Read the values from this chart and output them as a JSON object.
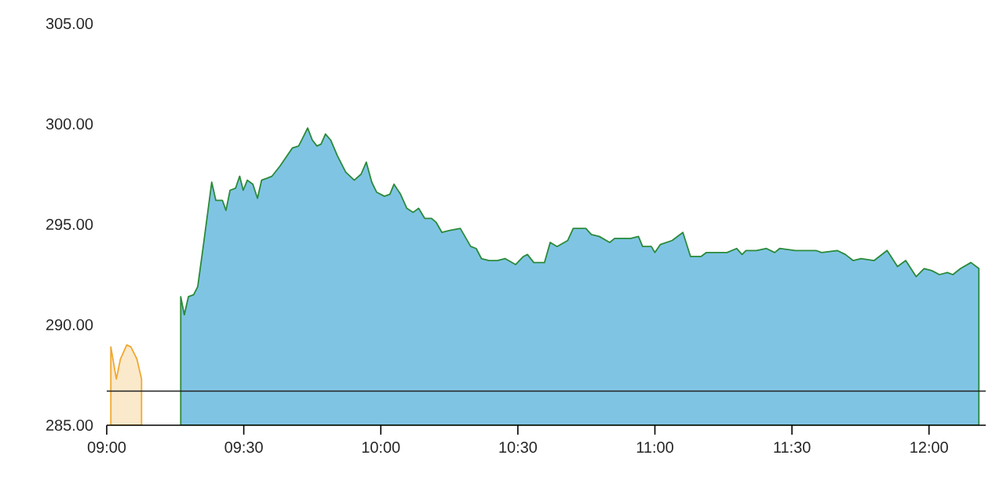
{
  "chart_data": {
    "type": "area",
    "xlim": [
      9,
      12.207
    ],
    "ylim": [
      285,
      305
    ],
    "xticks": [
      {
        "value": 9,
        "label": "09:00"
      },
      {
        "value": 9.5,
        "label": "09:30"
      },
      {
        "value": 10,
        "label": "10:00"
      },
      {
        "value": 10.5,
        "label": "10:30"
      },
      {
        "value": 11,
        "label": "11:00"
      },
      {
        "value": 11.5,
        "label": "11:30"
      },
      {
        "value": 12,
        "label": "12:00"
      }
    ],
    "yticks": [
      {
        "value": 285,
        "label": "285.00"
      },
      {
        "value": 290,
        "label": "290.00"
      },
      {
        "value": 295,
        "label": "295.00"
      },
      {
        "value": 300,
        "label": "300.00"
      },
      {
        "value": 305,
        "label": "305.00"
      }
    ],
    "grid": false,
    "ref_lines": [
      {
        "axis": "y",
        "value": 286.7,
        "color": "#222222"
      }
    ],
    "series": [
      {
        "color": "#fbe9cb",
        "x": [
          9.015,
          9.035,
          9.05,
          9.073,
          9.088,
          9.11,
          9.127
        ],
        "values": [
          288.9,
          287.3,
          288.3,
          289.0,
          288.9,
          288.3,
          287.3
        ]
      },
      {
        "color": "#80c4e4",
        "x": [
          9.27,
          9.283,
          9.298,
          9.317,
          9.332,
          9.355,
          9.383,
          9.398,
          9.422,
          9.435,
          9.45,
          9.47,
          9.485,
          9.498,
          9.513,
          9.533,
          9.55,
          9.565,
          9.585,
          9.603,
          9.632,
          9.652,
          9.677,
          9.7,
          9.715,
          9.733,
          9.75,
          9.767,
          9.782,
          9.798,
          9.817,
          9.842,
          9.872,
          9.903,
          9.928,
          9.947,
          9.967,
          9.985,
          10.013,
          10.033,
          10.048,
          10.072,
          10.095,
          10.118,
          10.138,
          10.16,
          10.185,
          10.202,
          10.223,
          10.252,
          10.29,
          10.328,
          10.348,
          10.367,
          10.395,
          10.425,
          10.453,
          10.492,
          10.52,
          10.535,
          10.558,
          10.597,
          10.618,
          10.643,
          10.682,
          10.702,
          10.73,
          10.748,
          10.768,
          10.797,
          10.835,
          10.853,
          10.912,
          10.94,
          10.955,
          10.987,
          11.0,
          11.02,
          11.063,
          11.102,
          11.13,
          11.168,
          11.188,
          11.227,
          11.263,
          11.298,
          11.318,
          11.332,
          11.37,
          11.407,
          11.437,
          11.455,
          11.513,
          11.588,
          11.608,
          11.665,
          11.695,
          11.723,
          11.752,
          11.8,
          11.847,
          11.857,
          11.885,
          11.915,
          11.953,
          11.982,
          12.01,
          12.038,
          12.067,
          12.087,
          12.115,
          12.153,
          12.182
        ],
        "values": [
          291.4,
          290.5,
          291.4,
          291.5,
          291.9,
          294.2,
          297.1,
          296.2,
          296.2,
          295.7,
          296.7,
          296.8,
          297.4,
          296.7,
          297.2,
          297.0,
          296.3,
          297.2,
          297.3,
          297.4,
          297.9,
          298.3,
          298.8,
          298.9,
          299.3,
          299.8,
          299.2,
          298.9,
          299.0,
          299.5,
          299.2,
          298.4,
          297.6,
          297.2,
          297.5,
          298.1,
          297.1,
          296.6,
          296.4,
          296.5,
          297.0,
          296.5,
          295.8,
          295.6,
          295.8,
          295.3,
          295.3,
          295.1,
          294.6,
          294.7,
          294.8,
          293.9,
          293.8,
          293.3,
          293.2,
          293.2,
          293.3,
          293.0,
          293.4,
          293.5,
          293.1,
          293.1,
          294.1,
          293.9,
          294.2,
          294.8,
          294.8,
          294.8,
          294.5,
          294.4,
          294.1,
          294.3,
          294.3,
          294.4,
          293.9,
          293.9,
          293.6,
          294.0,
          294.2,
          294.6,
          293.4,
          293.4,
          293.6,
          293.6,
          293.6,
          293.8,
          293.5,
          293.7,
          293.7,
          293.8,
          293.6,
          293.8,
          293.7,
          293.7,
          293.6,
          293.7,
          293.5,
          293.2,
          293.3,
          293.2,
          293.7,
          293.5,
          292.9,
          293.2,
          292.4,
          292.8,
          292.7,
          292.5,
          292.6,
          292.5,
          292.8,
          293.1,
          292.8
        ]
      }
    ]
  }
}
